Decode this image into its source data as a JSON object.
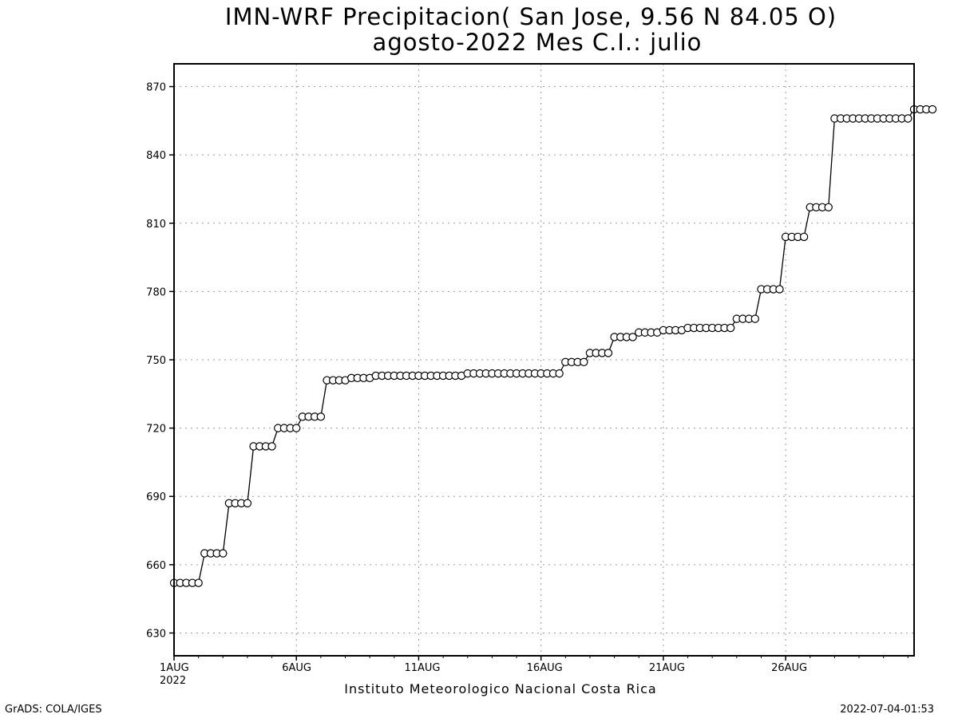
{
  "chart_data": {
    "type": "line",
    "title": "IMN-WRF  Precipitacion( San Jose, 9.56  N 84.05  O)",
    "subtitle": "agosto-2022 Mes C.I.: julio",
    "xlabel": "Instituto Meteorologico Nacional Costa Rica",
    "ylabel": "",
    "x_tick_labels": [
      "1AUG",
      "6AUG",
      "11AUG",
      "16AUG",
      "21AUG",
      "26AUG"
    ],
    "x_tick_sublabel": "2022",
    "x_tick_days": [
      1,
      6,
      11,
      16,
      21,
      26
    ],
    "xlim": [
      1,
      31.25
    ],
    "y_ticks": [
      630,
      660,
      690,
      720,
      750,
      780,
      810,
      840,
      870
    ],
    "ylim": [
      620,
      880
    ],
    "grid": true,
    "x_step_days": 0.25,
    "series": [
      {
        "marker": "open-circle",
        "color": "#000000",
        "values": [
          652,
          652,
          652,
          652,
          652,
          665,
          665,
          665,
          665,
          687,
          687,
          687,
          687,
          712,
          712,
          712,
          712,
          720,
          720,
          720,
          720,
          725,
          725,
          725,
          725,
          741,
          741,
          741,
          741,
          742,
          742,
          742,
          742,
          743,
          743,
          743,
          743,
          743,
          743,
          743,
          743,
          743,
          743,
          743,
          743,
          743,
          743,
          743,
          744,
          744,
          744,
          744,
          744,
          744,
          744,
          744,
          744,
          744,
          744,
          744,
          744,
          744,
          744,
          744,
          749,
          749,
          749,
          749,
          753,
          753,
          753,
          753,
          760,
          760,
          760,
          760,
          762,
          762,
          762,
          762,
          763,
          763,
          763,
          763,
          764,
          764,
          764,
          764,
          764,
          764,
          764,
          764,
          768,
          768,
          768,
          768,
          781,
          781,
          781,
          781,
          804,
          804,
          804,
          804,
          817,
          817,
          817,
          817,
          856,
          856,
          856,
          856,
          856,
          856,
          856,
          856,
          856,
          856,
          856,
          856,
          856,
          860,
          860,
          860,
          860
        ]
      }
    ]
  },
  "footer": {
    "left": "GrADS: COLA/IGES",
    "right": "2022-07-04-01:53"
  }
}
